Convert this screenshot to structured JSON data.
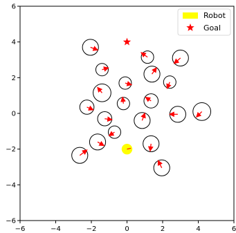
{
  "chart_data": {
    "type": "scatter",
    "title": "",
    "xlabel": "",
    "ylabel": "",
    "xlim": [
      -6,
      6
    ],
    "ylim": [
      -6,
      6
    ],
    "xticks": [
      -6,
      -4,
      -2,
      0,
      2,
      4,
      6
    ],
    "yticks": [
      -6,
      -4,
      -2,
      0,
      2,
      4,
      6
    ],
    "grid": false,
    "legend_position": "top-right",
    "robot": {
      "name": "Robot",
      "x": 0.0,
      "y": -2.0,
      "radius": 0.3,
      "color": "#ffff00"
    },
    "goal": {
      "name": "Goal",
      "x": 0.0,
      "y": 4.0,
      "color": "#ff0000",
      "marker": "star"
    },
    "legend": [
      {
        "label": "Robot",
        "color": "#ffff00",
        "marker": "patch"
      },
      {
        "label": "Goal",
        "color": "#ff0000",
        "marker": "star"
      }
    ],
    "obstacle_color": "#000000",
    "arrow_color": "#ff0000",
    "obstacles": [
      {
        "x": -2.05,
        "y": 3.7,
        "r": 0.45,
        "dx": 0.4,
        "dy": -0.15
      },
      {
        "x": 1.15,
        "y": 3.15,
        "r": 0.35,
        "dx": -0.35,
        "dy": 0.25
      },
      {
        "x": 3.0,
        "y": 3.1,
        "r": 0.45,
        "dx": -0.35,
        "dy": -0.3
      },
      {
        "x": -1.4,
        "y": 2.45,
        "r": 0.35,
        "dx": 0.35,
        "dy": 0.1
      },
      {
        "x": 1.4,
        "y": 2.2,
        "r": 0.45,
        "dx": 0.25,
        "dy": 0.35
      },
      {
        "x": -0.1,
        "y": 1.7,
        "r": 0.35,
        "dx": 0.35,
        "dy": -0.1
      },
      {
        "x": 2.4,
        "y": 1.75,
        "r": 0.35,
        "dx": -0.15,
        "dy": -0.35
      },
      {
        "x": -1.4,
        "y": 1.15,
        "r": 0.5,
        "dx": -0.25,
        "dy": 0.3
      },
      {
        "x": -0.2,
        "y": 0.55,
        "r": 0.35,
        "dx": -0.05,
        "dy": 0.35
      },
      {
        "x": 1.35,
        "y": 0.7,
        "r": 0.4,
        "dx": -0.3,
        "dy": 0.2
      },
      {
        "x": -2.25,
        "y": 0.35,
        "r": 0.4,
        "dx": 0.35,
        "dy": -0.15
      },
      {
        "x": 2.85,
        "y": -0.05,
        "r": 0.45,
        "dx": -0.45,
        "dy": 0.0
      },
      {
        "x": 4.2,
        "y": 0.1,
        "r": 0.5,
        "dx": -0.3,
        "dy": -0.3
      },
      {
        "x": -1.25,
        "y": -0.3,
        "r": 0.4,
        "dx": 0.4,
        "dy": -0.05
      },
      {
        "x": 0.85,
        "y": -0.4,
        "r": 0.45,
        "dx": 0.15,
        "dy": 0.4
      },
      {
        "x": -0.7,
        "y": -1.05,
        "r": 0.35,
        "dx": -0.3,
        "dy": -0.2
      },
      {
        "x": -1.65,
        "y": -1.6,
        "r": 0.45,
        "dx": 0.35,
        "dy": -0.2
      },
      {
        "x": 1.35,
        "y": -1.7,
        "r": 0.45,
        "dx": -0.05,
        "dy": -0.4
      },
      {
        "x": -2.65,
        "y": -2.35,
        "r": 0.45,
        "dx": 0.4,
        "dy": 0.3
      },
      {
        "x": 1.95,
        "y": -3.05,
        "r": 0.45,
        "dx": -0.2,
        "dy": 0.4
      }
    ]
  }
}
